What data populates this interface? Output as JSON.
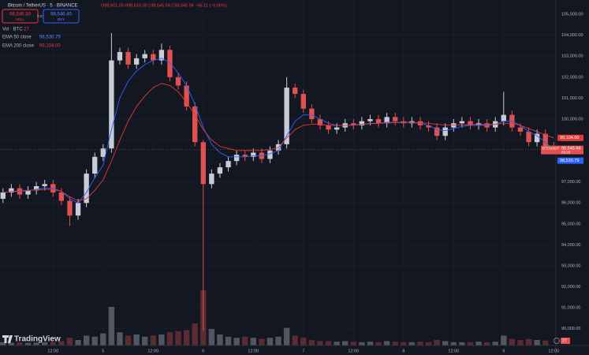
{
  "header": {
    "title": "Bitcoin / TetherUS · 5 · BINANCE",
    "ohlc": "O98,601.05 H98,616.00 L98,545.94 C98,545.94 −55.11 (−0.06%)",
    "sell_price": "98,546.39",
    "sell": "SELL",
    "spread": "0.01",
    "buy_price": "98,546.40",
    "buy": "BUY",
    "branding": "TradingView"
  },
  "chart_data": {
    "type": "candlestick",
    "categories": [
      null,
      null,
      null,
      null,
      null,
      null,
      "12:00",
      null,
      null,
      null,
      null,
      null,
      "5",
      null,
      null,
      null,
      null,
      null,
      "12:00",
      null,
      null,
      null,
      null,
      null,
      "6",
      null,
      null,
      null,
      null,
      null,
      "12:00",
      null,
      null,
      null,
      null,
      null,
      "7",
      null,
      null,
      null,
      null,
      null,
      "12:00",
      null,
      null,
      null,
      null,
      null,
      "8",
      null,
      null,
      null,
      null,
      null,
      "12:00",
      null,
      null,
      null,
      null,
      null,
      "9",
      null,
      null,
      null,
      null,
      null,
      "12:00"
    ],
    "open": [
      96200,
      96500,
      96700,
      96400,
      96600,
      96800,
      96900,
      96500,
      96100,
      95400,
      96000,
      97400,
      98200,
      98600,
      102800,
      103200,
      102600,
      102900,
      103100,
      102800,
      103300,
      102000,
      101600,
      100600,
      98900,
      96900,
      97400,
      97700,
      98000,
      98300,
      98200,
      98400,
      98100,
      98500,
      98800,
      101500,
      101200,
      100500,
      100000,
      99700,
      99500,
      99600,
      99800,
      99700,
      99900,
      100000,
      99800,
      100100,
      99900,
      99800,
      99900,
      99700,
      99600,
      99200,
      99600,
      99800,
      99900,
      99700,
      99800,
      99600,
      99900,
      100200,
      99600,
      99400,
      98900,
      99300,
      98700
    ],
    "high": [
      96700,
      96900,
      96900,
      96800,
      97000,
      97100,
      97100,
      96700,
      96300,
      96200,
      97600,
      98400,
      98800,
      104100,
      103400,
      103400,
      103100,
      103300,
      103300,
      103600,
      103500,
      102200,
      101800,
      100800,
      99000,
      97600,
      97900,
      98200,
      98500,
      98500,
      98600,
      98600,
      98700,
      99000,
      102000,
      101700,
      101400,
      100700,
      100200,
      99900,
      99800,
      100000,
      100000,
      100100,
      100200,
      100200,
      100300,
      100300,
      100100,
      100100,
      100100,
      99900,
      99800,
      99800,
      100000,
      100100,
      100100,
      100000,
      100000,
      100100,
      101300,
      100400,
      99800,
      99600,
      99500,
      99500,
      98900
    ],
    "low": [
      96000,
      96300,
      96200,
      96200,
      96400,
      96600,
      96300,
      95900,
      94900,
      95200,
      95800,
      97200,
      98000,
      98400,
      102600,
      102400,
      102400,
      102700,
      102600,
      102600,
      101800,
      101400,
      100400,
      98700,
      89900,
      96700,
      97200,
      97500,
      97800,
      98000,
      98000,
      97900,
      97900,
      98300,
      98600,
      101000,
      100300,
      99800,
      99500,
      99300,
      99300,
      99400,
      99500,
      99500,
      99700,
      99600,
      99600,
      99700,
      99600,
      99600,
      99500,
      99400,
      99000,
      99000,
      99400,
      99600,
      99500,
      99500,
      99400,
      99400,
      99700,
      99400,
      99200,
      98700,
      98700,
      98500,
      98400
    ],
    "close": [
      96500,
      96700,
      96400,
      96600,
      96800,
      96900,
      96500,
      96100,
      95400,
      96000,
      97400,
      98200,
      98600,
      102800,
      103200,
      102600,
      102900,
      103100,
      102800,
      103300,
      102000,
      101600,
      100600,
      98900,
      96900,
      97400,
      97700,
      98000,
      98300,
      98200,
      98400,
      98100,
      98500,
      98800,
      101500,
      101200,
      100500,
      100000,
      99700,
      99500,
      99600,
      99800,
      99700,
      99900,
      100000,
      99800,
      100100,
      99900,
      99800,
      99900,
      99700,
      99600,
      99200,
      99600,
      99800,
      99900,
      99700,
      99800,
      99600,
      99900,
      100200,
      99600,
      99400,
      98900,
      99300,
      98700,
      98545.94
    ],
    "close_label": "98,545.94",
    "symbol": "BTCUSDT",
    "countdown": "03:20",
    "up_color": "#c8ccd6",
    "down_color": "#e0514f",
    "series": [
      {
        "name": "EMA 50 close",
        "color": "#2962ff",
        "last_label": "98,530.79",
        "values": [
          96500,
          96550,
          96550,
          96580,
          96650,
          96720,
          96700,
          96550,
          96200,
          96000,
          96500,
          97200,
          97800,
          99500,
          101000,
          101800,
          102300,
          102600,
          102800,
          102900,
          102700,
          102200,
          101600,
          100700,
          99600,
          98800,
          98400,
          98200,
          98200,
          98200,
          98250,
          98250,
          98350,
          98500,
          99200,
          99900,
          100200,
          100200,
          100000,
          99800,
          99700,
          99700,
          99700,
          99750,
          99800,
          99800,
          99850,
          99850,
          99850,
          99850,
          99800,
          99700,
          99500,
          99450,
          99550,
          99650,
          99700,
          99700,
          99700,
          99750,
          99900,
          99900,
          99700,
          99400,
          99200,
          98900,
          98530.79
        ]
      },
      {
        "name": "EMA 200 close",
        "color": "#e53935",
        "last_label": "99,104.00",
        "values": [
          96500,
          96550,
          96580,
          96600,
          96620,
          96650,
          96650,
          96550,
          96300,
          96100,
          96200,
          96600,
          97100,
          98000,
          99000,
          99900,
          100600,
          101100,
          101500,
          101700,
          101600,
          101300,
          100800,
          100200,
          99500,
          99000,
          98700,
          98600,
          98500,
          98500,
          98500,
          98500,
          98550,
          98650,
          99100,
          99500,
          99700,
          99750,
          99750,
          99700,
          99700,
          99700,
          99720,
          99750,
          99780,
          99800,
          99820,
          99830,
          99830,
          99830,
          99820,
          99800,
          99750,
          99720,
          99720,
          99730,
          99740,
          99740,
          99740,
          99750,
          99800,
          99800,
          99700,
          99550,
          99400,
          99250,
          99104
        ]
      }
    ],
    "volume": {
      "name": "Vol · BTC",
      "values": [
        300,
        250,
        280,
        240,
        260,
        300,
        320,
        400,
        700,
        500,
        900,
        800,
        1100,
        3500,
        1200,
        900,
        1000,
        800,
        900,
        1000,
        1200,
        1300,
        1400,
        2000,
        5000,
        1500,
        1000,
        800,
        700,
        800,
        700,
        600,
        700,
        800,
        1600,
        900,
        700,
        500,
        400,
        400,
        350,
        400,
        350,
        300,
        350,
        300,
        400,
        350,
        300,
        300,
        350,
        300,
        500,
        400,
        300,
        300,
        300,
        350,
        300,
        350,
        900,
        600,
        500,
        600,
        500,
        450,
        27
      ]
    },
    "ylim": [
      89200,
      105680
    ],
    "yticks": [
      {
        "value": 90000,
        "label": "90,000.00"
      },
      {
        "value": 91000,
        "label": "91,000.00"
      },
      {
        "value": 92000,
        "label": "92,000.00"
      },
      {
        "value": 93000,
        "label": "93,000.00"
      },
      {
        "value": 94000,
        "label": "94,000.00"
      },
      {
        "value": 95000,
        "label": "95,000.00"
      },
      {
        "value": 96000,
        "label": "96,000.00"
      },
      {
        "value": 97000,
        "label": "97,000.00"
      },
      {
        "value": 98000,
        "label": "98,000.00"
      },
      {
        "value": 99000,
        "label": "99,000.00"
      },
      {
        "value": 100000,
        "label": "100,000.00"
      },
      {
        "value": 101000,
        "label": "101,000.00"
      },
      {
        "value": 102000,
        "label": "102,000.00"
      },
      {
        "value": 103000,
        "label": "103,000.00"
      },
      {
        "value": 104000,
        "label": "104,000.00"
      },
      {
        "value": 105000,
        "label": "105,000.00"
      }
    ],
    "grid": true
  }
}
